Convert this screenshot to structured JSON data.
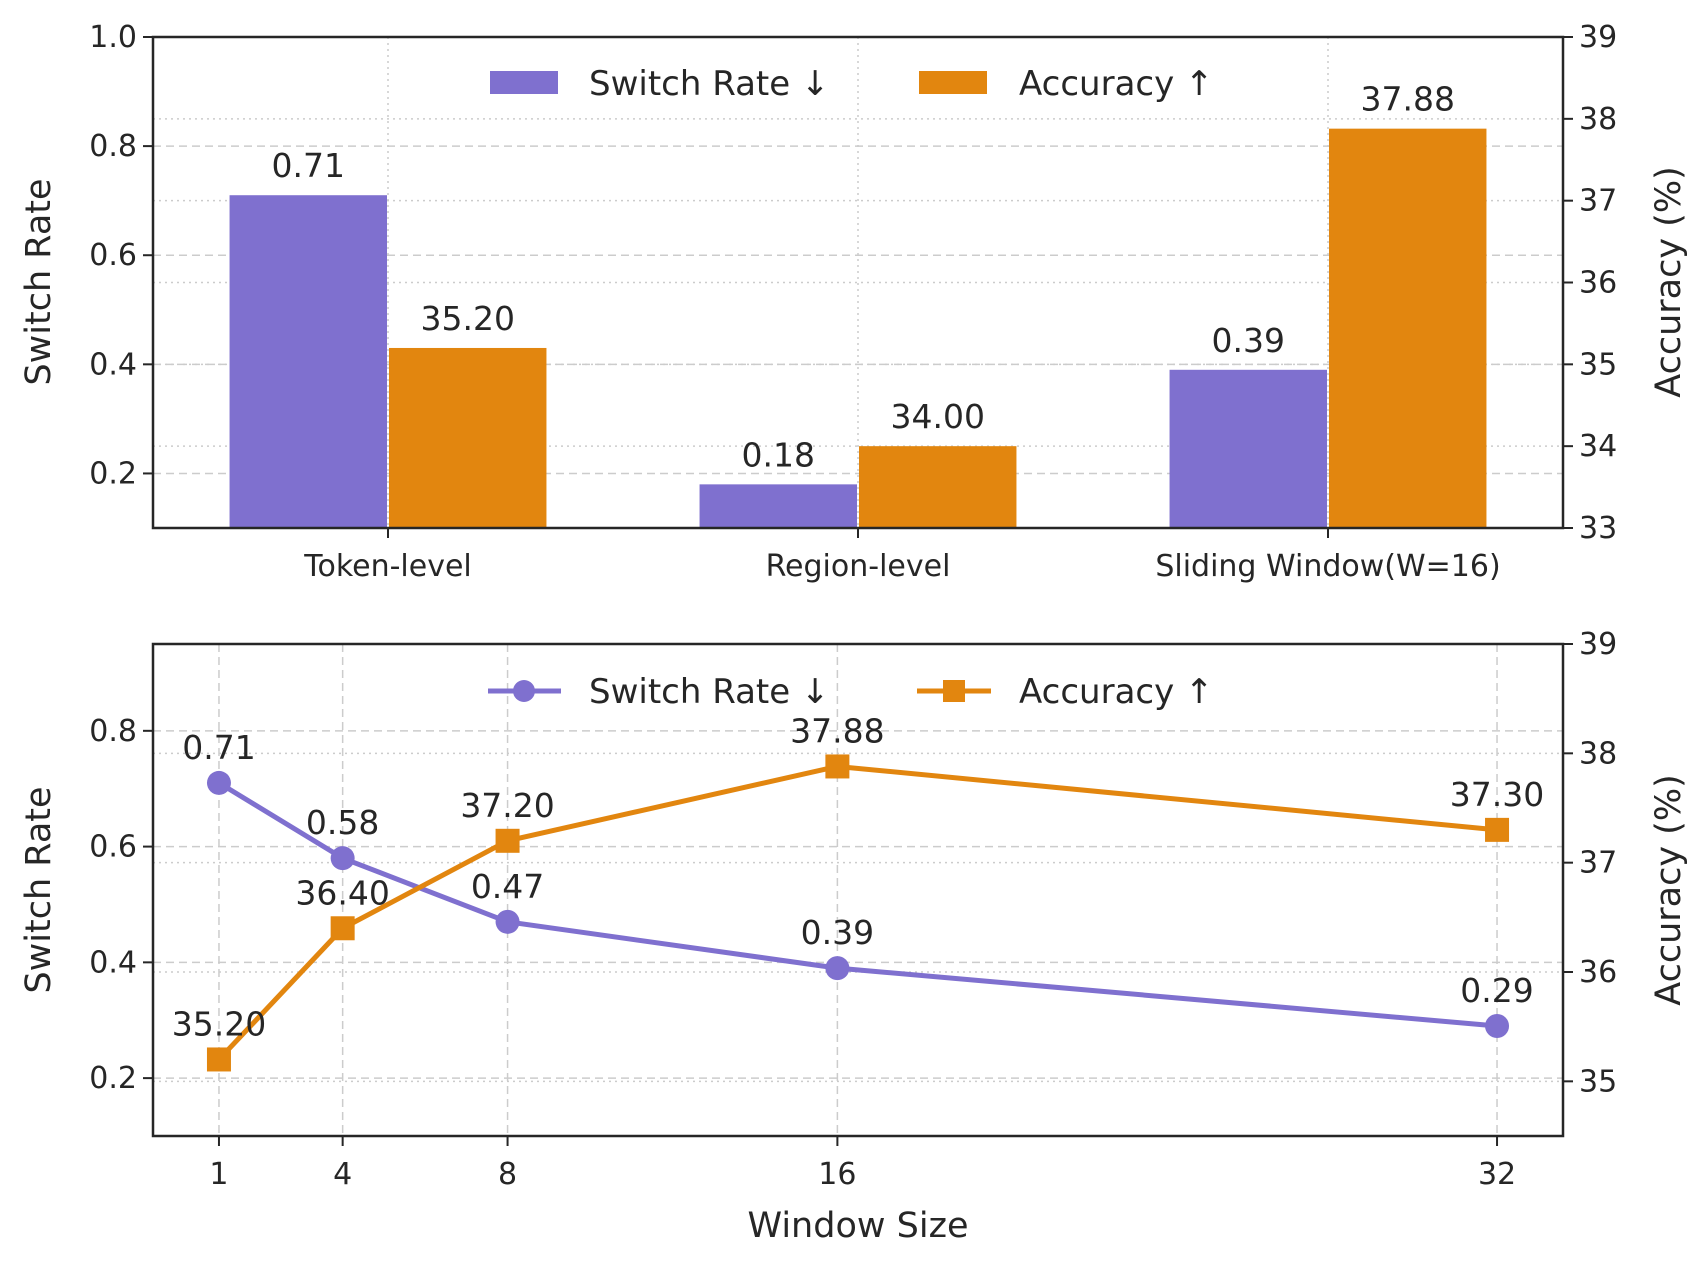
{
  "chart_data": [
    {
      "type": "bar",
      "categories": [
        "Token-level",
        "Region-level",
        "Sliding Window(W=16)"
      ],
      "series": [
        {
          "name": "Switch Rate ↓",
          "axis": "left",
          "color": "#7f70cf",
          "values": [
            0.71,
            0.18,
            0.39
          ],
          "labels": [
            "0.71",
            "0.18",
            "0.39"
          ]
        },
        {
          "name": "Accuracy ↑",
          "axis": "right",
          "color": "#e2860f",
          "values": [
            35.2,
            34.0,
            37.88
          ],
          "labels": [
            "35.20",
            "34.00",
            "37.88"
          ]
        }
      ],
      "ylabel": "Switch Rate",
      "y2label": "Accuracy (%)",
      "ylim": [
        0.1,
        1.0
      ],
      "y2lim": [
        33,
        39
      ],
      "yticks": [
        "0.2",
        "0.4",
        "0.6",
        "0.8",
        "1.0"
      ],
      "y2ticks": [
        "33",
        "34",
        "35",
        "36",
        "37",
        "38",
        "39"
      ],
      "grid": true,
      "legend": "top-center"
    },
    {
      "type": "line",
      "x": [
        1,
        4,
        8,
        16,
        32
      ],
      "xticks": [
        "1",
        "4",
        "8",
        "16",
        "32"
      ],
      "series": [
        {
          "name": "Switch Rate ↓",
          "axis": "left",
          "marker": "circle",
          "color": "#7f70cf",
          "values": [
            0.71,
            0.58,
            0.47,
            0.39,
            0.29
          ],
          "labels": [
            "0.71",
            "0.58",
            "0.47",
            "0.39",
            "0.29"
          ]
        },
        {
          "name": "Accuracy ↑",
          "axis": "right",
          "marker": "square",
          "color": "#e2860f",
          "values": [
            35.2,
            36.4,
            37.2,
            37.88,
            37.3
          ],
          "labels": [
            "35.20",
            "36.40",
            "37.20",
            "37.88",
            "37.30"
          ]
        }
      ],
      "xlabel": "Window Size",
      "ylabel": "Switch Rate",
      "y2label": "Accuracy (%)",
      "ylim": [
        0.1,
        0.95
      ],
      "y2lim": [
        34.5,
        39
      ],
      "yticks": [
        "0.2",
        "0.4",
        "0.6",
        "0.8"
      ],
      "y2ticks": [
        "35",
        "36",
        "37",
        "38",
        "39"
      ],
      "grid": true,
      "legend": "top-center"
    }
  ]
}
